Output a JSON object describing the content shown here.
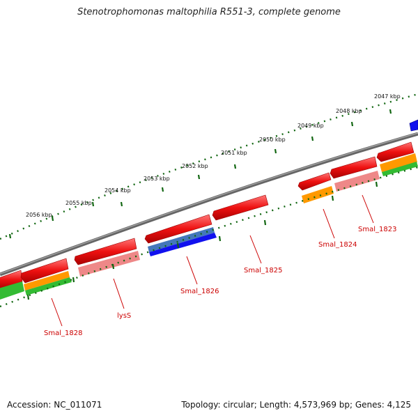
{
  "title": "Stenotrophomonas maltophilia R551-3, complete genome",
  "footer": {
    "accession": "Accession: NC_011071",
    "summary": "Topology: circular; Length: 4,573,969 bp; Genes: 4,125"
  },
  "ruler": {
    "kbp_labels": [
      "2047 kbp",
      "2048 kbp",
      "2049 kbp",
      "2050 kbp",
      "2051 kbp",
      "2052 kbp",
      "2053 kbp",
      "2054 kbp",
      "2055 kbp",
      "2056 kbp"
    ]
  },
  "gene_labels": [
    "Smal_1823",
    "Smal_1824",
    "Smal_1825",
    "Smal_1826",
    "lysS",
    "Smal_1828"
  ],
  "colors": {
    "cds": "#ee1111",
    "cds_light": "#ee8888",
    "orange": "#ff9900",
    "green": "#33bb33",
    "blue": "#1111ee",
    "steel": "#4477bb",
    "backbone": "#777777",
    "tick": "#116611",
    "label": "#cc0000"
  }
}
